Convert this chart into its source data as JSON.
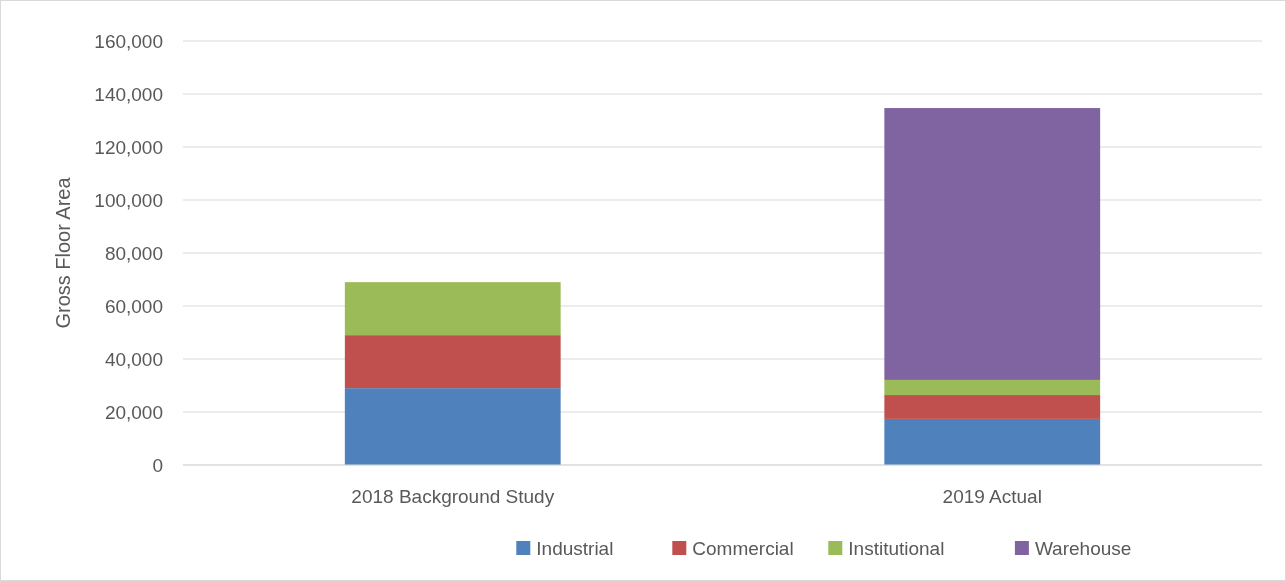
{
  "chart_data": {
    "type": "bar",
    "stacked": true,
    "ylabel": "Gross Floor Area",
    "categories": [
      "2018 Background Study",
      "2019 Actual"
    ],
    "series": [
      {
        "name": "Industrial",
        "color": "#4f81bd",
        "values": [
          29000,
          17400
        ]
      },
      {
        "name": "Commercial",
        "color": "#c0504d",
        "values": [
          20000,
          9000
        ]
      },
      {
        "name": "Institutional",
        "color": "#9bbb59",
        "values": [
          20000,
          5700
        ]
      },
      {
        "name": "Warehouse",
        "color": "#8064a2",
        "values": [
          0,
          102600
        ]
      }
    ],
    "ylim": [
      0,
      160000
    ],
    "yticks": [
      {
        "value": 0,
        "label": "0"
      },
      {
        "value": 20000,
        "label": "20,000"
      },
      {
        "value": 40000,
        "label": "40,000"
      },
      {
        "value": 60000,
        "label": "60,000"
      },
      {
        "value": 80000,
        "label": "80,000"
      },
      {
        "value": 100000,
        "label": "100,000"
      },
      {
        "value": 120000,
        "label": "120,000"
      },
      {
        "value": 140000,
        "label": "140,000"
      },
      {
        "value": 160000,
        "label": "160,000"
      }
    ],
    "grid": "y",
    "legend": "bottom"
  }
}
